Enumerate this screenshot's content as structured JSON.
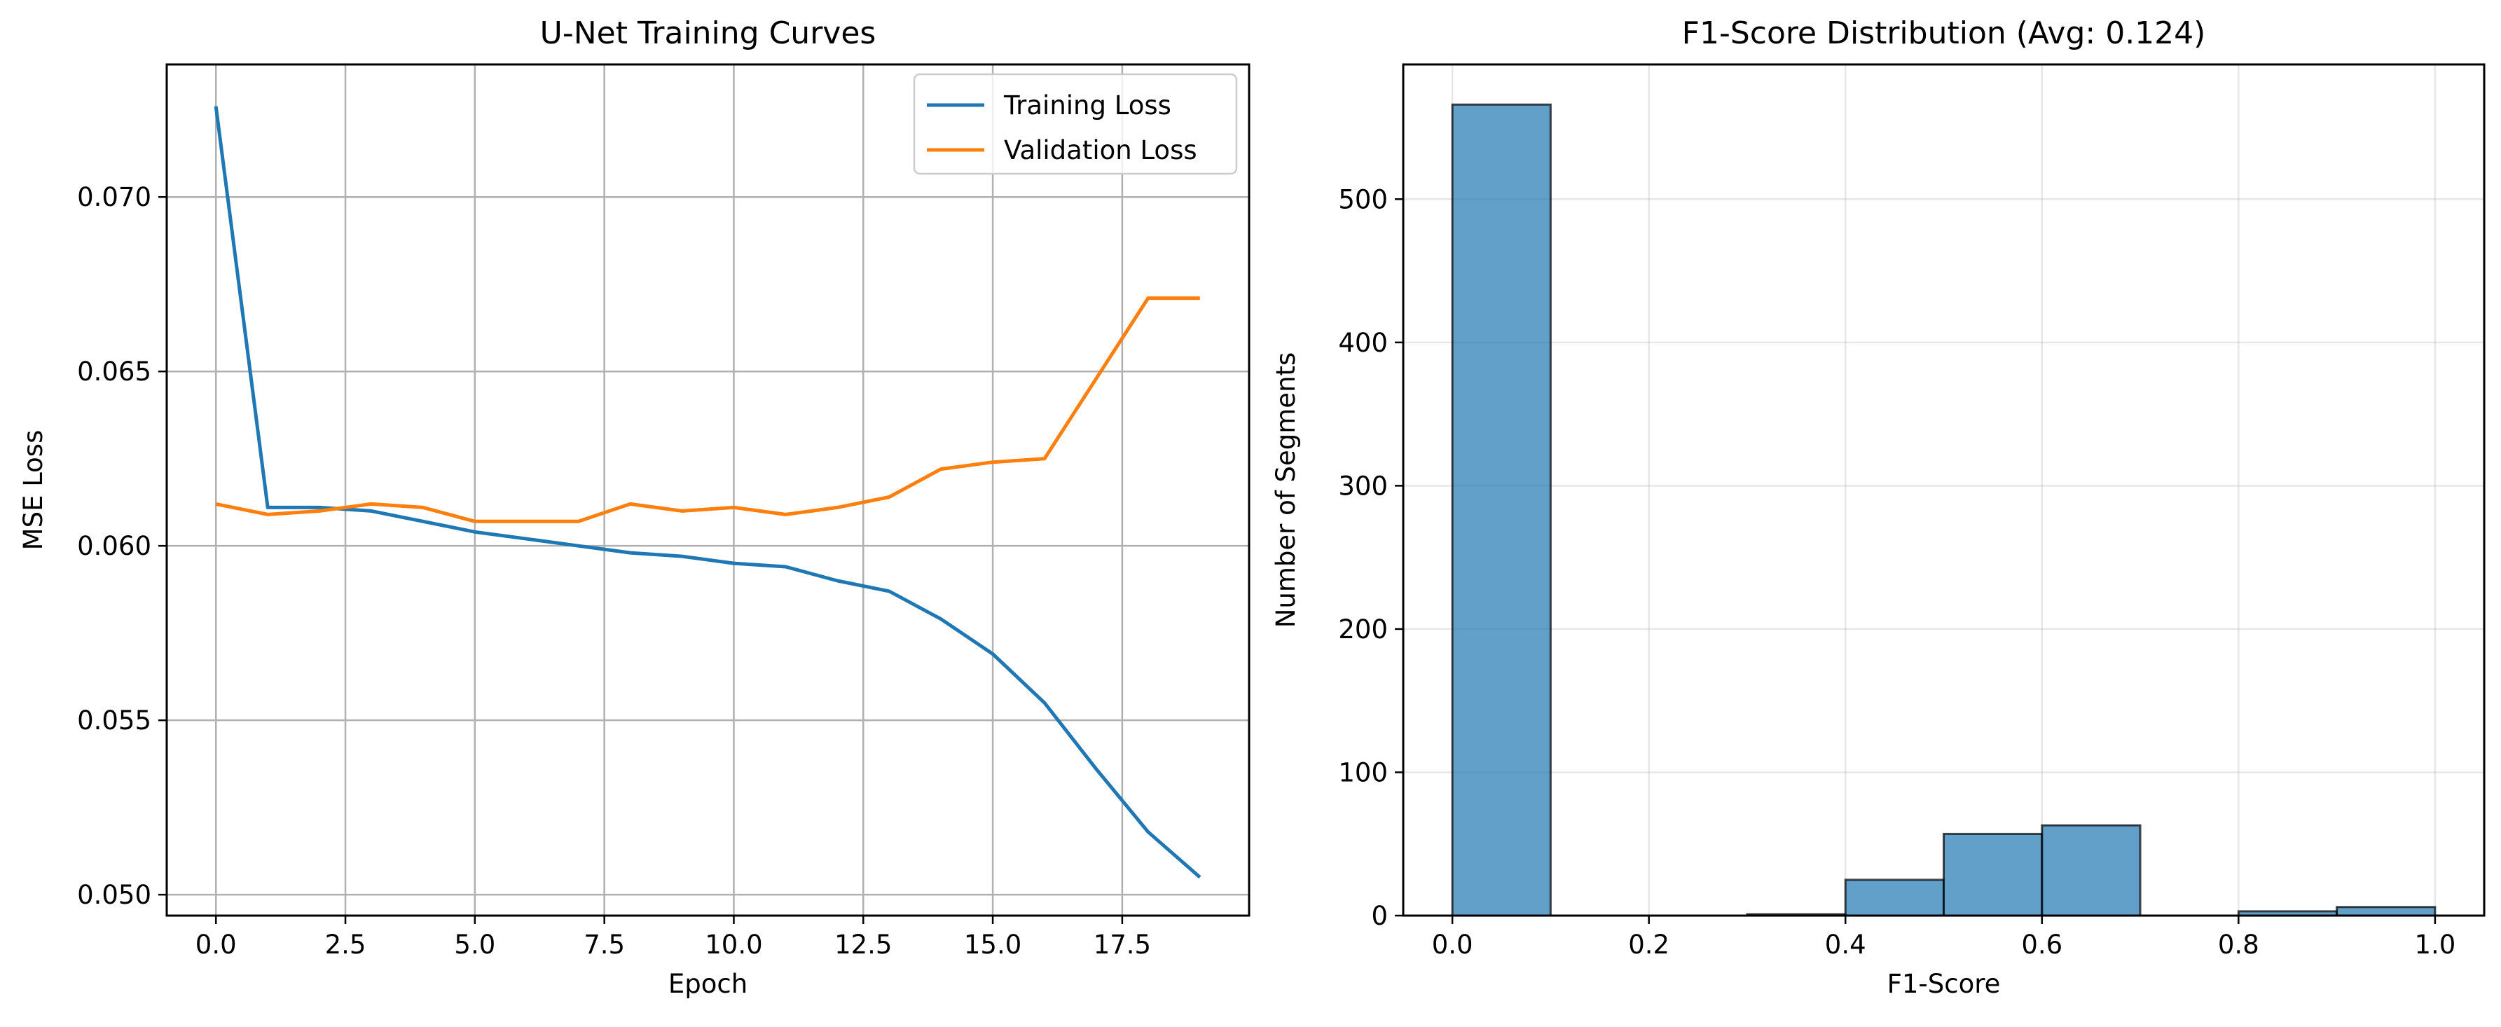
{
  "chart_data": [
    {
      "type": "line",
      "title": "U-Net Training Curves",
      "xlabel": "Epoch",
      "ylabel": "MSE Loss",
      "xlim": [
        -0.95,
        19.95
      ],
      "ylim": [
        0.0494,
        0.0738
      ],
      "xticks": [
        0.0,
        2.5,
        5.0,
        7.5,
        10.0,
        12.5,
        15.0,
        17.5
      ],
      "xtick_labels": [
        "0.0",
        "2.5",
        "5.0",
        "7.5",
        "10.0",
        "12.5",
        "15.0",
        "17.5"
      ],
      "yticks": [
        0.05,
        0.055,
        0.06,
        0.065,
        0.07
      ],
      "ytick_labels": [
        "0.050",
        "0.055",
        "0.060",
        "0.065",
        "0.070"
      ],
      "grid": true,
      "legend_position": "top-right",
      "x": [
        0,
        1,
        2,
        3,
        4,
        5,
        6,
        7,
        8,
        9,
        10,
        11,
        12,
        13,
        14,
        15,
        16,
        17,
        18,
        19
      ],
      "series": [
        {
          "name": "Training Loss",
          "color": "#1f77b4",
          "values": [
            0.0726,
            0.0611,
            0.0611,
            0.061,
            0.0607,
            0.0604,
            0.0602,
            0.06,
            0.0598,
            0.0597,
            0.0595,
            0.0594,
            0.059,
            0.0587,
            0.0579,
            0.0569,
            0.0555,
            0.0536,
            0.0518,
            0.0505
          ]
        },
        {
          "name": "Validation Loss",
          "color": "#ff7f0e",
          "values": [
            0.0612,
            0.0609,
            0.061,
            0.0612,
            0.0611,
            0.0607,
            0.0607,
            0.0607,
            0.0612,
            0.061,
            0.0611,
            0.0609,
            0.0611,
            0.0614,
            0.0622,
            0.0624,
            0.0625,
            0.0648,
            0.0671,
            0.0671
          ]
        }
      ]
    },
    {
      "type": "bar",
      "title": "F1-Score Distribution (Avg: 0.124)",
      "xlabel": "F1-Score",
      "ylabel": "Number of Segments",
      "xlim": [
        -0.05,
        1.05
      ],
      "ylim": [
        0,
        594
      ],
      "xticks": [
        0.0,
        0.2,
        0.4,
        0.6,
        0.8,
        1.0
      ],
      "xtick_labels": [
        "0.0",
        "0.2",
        "0.4",
        "0.6",
        "0.8",
        "1.0"
      ],
      "yticks": [
        0,
        100,
        200,
        300,
        400,
        500
      ],
      "ytick_labels": [
        "0",
        "100",
        "200",
        "300",
        "400",
        "500"
      ],
      "grid": true,
      "bar_color": "#1f77b4",
      "bar_opacity": 0.7,
      "bin_edges": [
        0.0,
        0.1,
        0.2,
        0.3,
        0.4,
        0.5,
        0.6,
        0.7,
        0.8,
        0.9,
        1.0
      ],
      "values": [
        566,
        0,
        0,
        1,
        25,
        57,
        63,
        0,
        3,
        6
      ]
    }
  ]
}
